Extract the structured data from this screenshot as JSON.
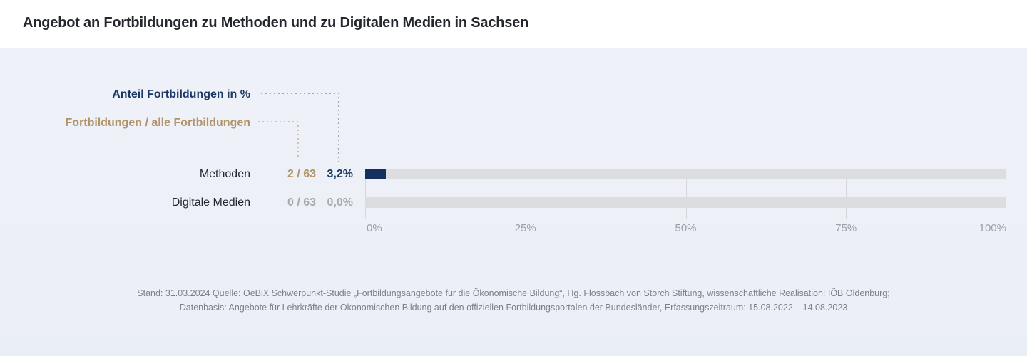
{
  "title": "Angebot an Fortbildungen zu Methoden und zu Digitalen Medien in Sachsen",
  "legend": {
    "percent_label": "Anteil Fortbildungen in %",
    "ratio_label": "Fortbildungen / alle Fortbildungen"
  },
  "rows": [
    {
      "label": "Methoden",
      "ratio": "2 / 63",
      "percent": "3,2%"
    },
    {
      "label": "Digitale Medien",
      "ratio": "0 / 63",
      "percent": "0,0%"
    }
  ],
  "axis": {
    "ticks": [
      "0%",
      "25%",
      "50%",
      "75%",
      "100%"
    ]
  },
  "footer": {
    "line1": "Stand: 31.03.2024 Quelle: OeBiX Schwerpunkt-Studie „Fortbildungsangebote für die Ökonomische Bildung“, Hg. Flossbach von Storch Stiftung, wissenschaftliche Realisation: IÖB Oldenburg;",
    "line2": "Datenbasis: Angebote für Lehrkräfte der Ökonomischen Bildung auf den offiziellen Fortbildungsportalen der Bundesländer, Erfassungszeitraum: 15.08.2022 – 14.08.2023"
  },
  "colors": {
    "navy_bar": "#14305f",
    "navy_text": "#1b3766",
    "tan_text": "#b2946b",
    "muted_text": "#a7a9ad",
    "track": "#dcddde",
    "panel_background": "#eef1f7",
    "gridline": "#d5d7db"
  },
  "chart_data": {
    "type": "bar",
    "orientation": "horizontal",
    "title": "Angebot an Fortbildungen zu Methoden und zu Digitalen Medien in Sachsen",
    "categories": [
      "Methoden",
      "Digitale Medien"
    ],
    "values": [
      3.2,
      0.0
    ],
    "value_labels": [
      "3,2%",
      "0,0%"
    ],
    "count_labels": [
      "2 / 63",
      "0 / 63"
    ],
    "counts": [
      {
        "numerator": 2,
        "denominator": 63
      },
      {
        "numerator": 0,
        "denominator": 63
      }
    ],
    "xlabel": "Anteil Fortbildungen in %",
    "xlim": [
      0,
      100
    ],
    "x_ticks": [
      "0%",
      "25%",
      "50%",
      "75%",
      "100%"
    ],
    "grid": true,
    "legend_entries": [
      "Anteil Fortbildungen in %",
      "Fortbildungen / alle Fortbildungen"
    ],
    "source_note": "Stand: 31.03.2024 Quelle: OeBiX Schwerpunkt-Studie „Fortbildungsangebote für die Ökonomische Bildung“, Hg. Flossbach von Storch Stiftung, wissenschaftliche Realisation: IÖB Oldenburg; Datenbasis: Angebote für Lehrkräfte der Ökonomischen Bildung auf den offiziellen Fortbildungsportalen der Bundesländer, Erfassungszeitraum: 15.08.2022 – 14.08.2023"
  }
}
